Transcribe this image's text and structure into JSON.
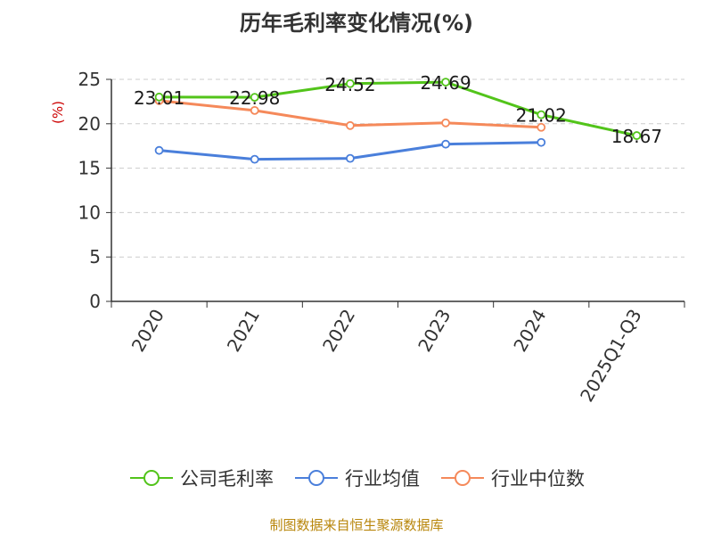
{
  "chart_data": {
    "type": "line",
    "title": "历年毛利率变化情况(%)",
    "ylabel": "(%)",
    "xlabel": "",
    "categories": [
      "2020",
      "2021",
      "2022",
      "2023",
      "2024",
      "2025Q1-Q3"
    ],
    "ylim": [
      0,
      25
    ],
    "yticks": [
      0,
      5,
      10,
      15,
      20,
      25
    ],
    "grid": true,
    "legend_position": "bottom",
    "series": [
      {
        "name": "公司毛利率",
        "color": "#52c41a",
        "values": [
          23.01,
          22.98,
          24.52,
          24.69,
          21.02,
          18.67
        ],
        "labels": [
          "23.01",
          "22.98",
          "24.52",
          "24.69",
          "21.02",
          "18.67"
        ]
      },
      {
        "name": "行业均值",
        "color": "#4a7fdb",
        "values": [
          17.0,
          16.0,
          16.1,
          17.7,
          17.9,
          null
        ]
      },
      {
        "name": "行业中位数",
        "color": "#f5895a",
        "values": [
          22.6,
          21.5,
          19.8,
          20.1,
          19.6,
          null
        ]
      }
    ]
  },
  "source": "制图数据来自恒生聚源数据库"
}
